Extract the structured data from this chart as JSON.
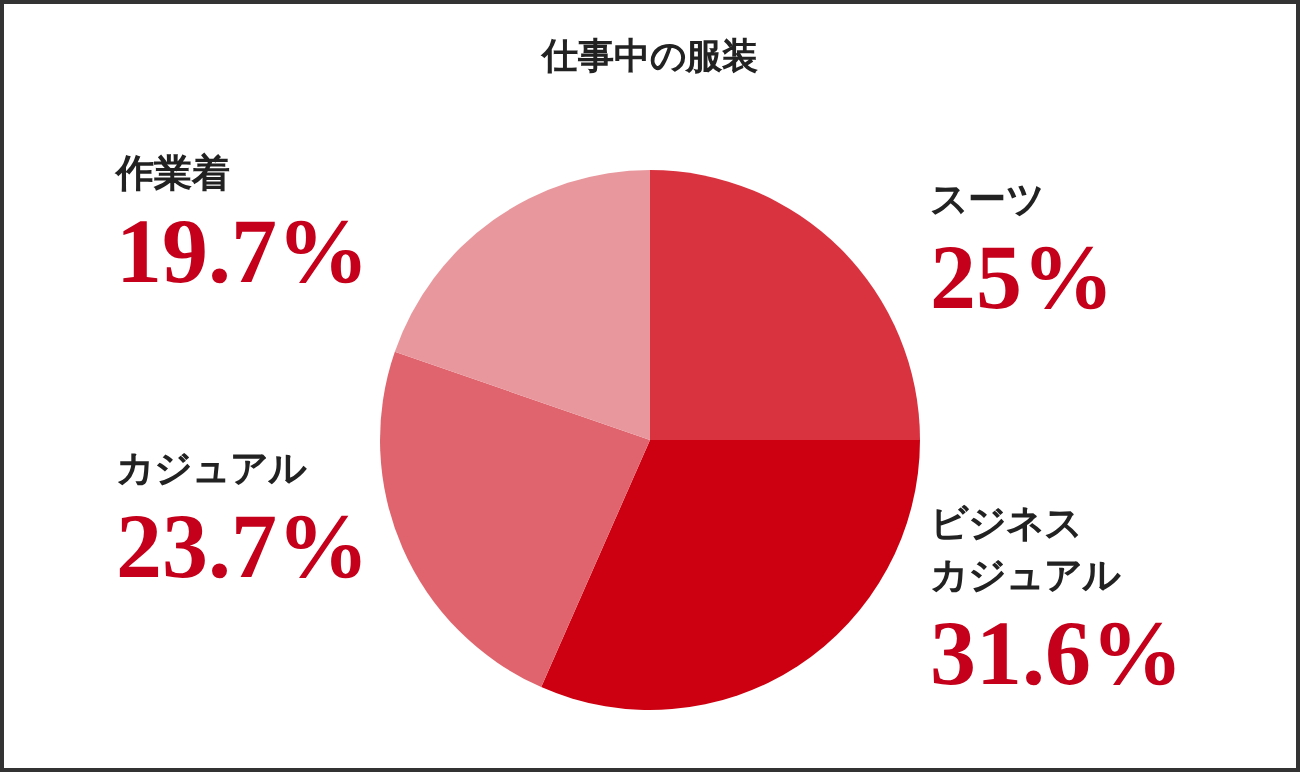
{
  "chart_data": {
    "type": "pie",
    "title": "仕事中の服装",
    "categories": [
      "スーツ",
      "ビジネスカジュアル",
      "カジュアル",
      "作業着"
    ],
    "values": [
      25,
      31.6,
      23.7,
      19.7
    ],
    "colors": [
      "#d93340",
      "#cc0010",
      "#e0646d",
      "#e8979d"
    ],
    "value_labels": [
      "25%",
      "31.6%",
      "23.7%",
      "19.7%"
    ]
  }
}
